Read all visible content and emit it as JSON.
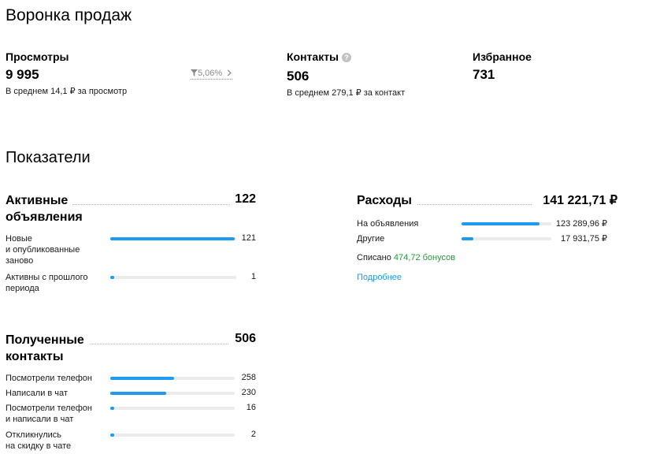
{
  "funnel": {
    "title": "Воронка продаж",
    "views": {
      "label": "Просмотры",
      "value": "9 995",
      "avg": "В среднем 14,1 ₽ за просмотр",
      "conversion": "5,06%"
    },
    "contacts": {
      "label": "Контакты",
      "value": "506",
      "avg": "В среднем 279,1 ₽ за контакт"
    },
    "favorites": {
      "label": "Избранное",
      "value": "731"
    }
  },
  "indicators": {
    "title": "Показатели",
    "active_ads": {
      "title_line1": "Активные",
      "title_line2": "объявления",
      "total": "122",
      "rows": [
        {
          "label_lines": [
            "Новые",
            "и опубликованные",
            "заново"
          ],
          "value": "121",
          "fraction": 0.99
        },
        {
          "label_lines": [
            "Активны с прошлого",
            "периода"
          ],
          "value": "1",
          "fraction": 0.03
        }
      ]
    },
    "contacts": {
      "title_line1": "Полученные",
      "title_line2": "контакты",
      "total": "506",
      "rows": [
        {
          "label_lines": [
            "Посмотрели телефон"
          ],
          "value": "258",
          "fraction": 0.51
        },
        {
          "label_lines": [
            "Написали в чат"
          ],
          "value": "230",
          "fraction": 0.45
        },
        {
          "label_lines": [
            "Посмотрели телефон",
            "и написали в чат"
          ],
          "value": "16",
          "fraction": 0.03
        },
        {
          "label_lines": [
            "Откликнулись",
            "на скидку в чате"
          ],
          "value": "2",
          "fraction": 0.03
        }
      ]
    },
    "expenses": {
      "title": "Расходы",
      "total": "141 221,71 ₽",
      "rows": [
        {
          "label": "На объявления",
          "value": "123 289,96 ₽",
          "fraction": 0.87
        },
        {
          "label": "Другие",
          "value": "17 931,75 ₽",
          "fraction": 0.13
        }
      ],
      "spent_prefix": "Списано",
      "spent_bonus": "474,72 бонусов",
      "more_link": "Подробнее"
    }
  },
  "colors": {
    "accent": "#1e9bf0",
    "bonus": "#21a038",
    "track": "#ebebeb"
  },
  "icons": {
    "filter": "filter-funnel-icon",
    "chevron": "chevron-right-icon",
    "help": "question-icon"
  }
}
